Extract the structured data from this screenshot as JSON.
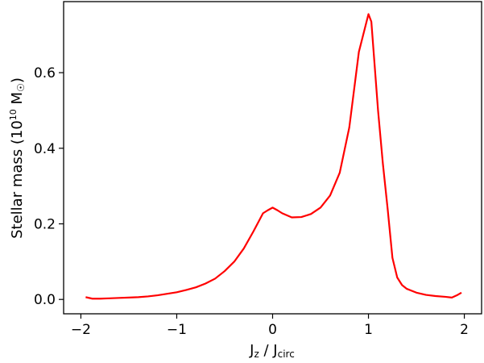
{
  "chart_data": {
    "type": "line",
    "xlabel": {
      "main": "J",
      "sub1": "z",
      "mid": " / J",
      "sub2": "circ"
    },
    "ylabel": {
      "pre": "Stellar mass (10",
      "sup": "10",
      "post": " M",
      "post_sym": "☉",
      "close": ")"
    },
    "xlim": [
      -2.18,
      2.18
    ],
    "ylim": [
      -0.038,
      0.788
    ],
    "xticks": [
      -2,
      -1,
      0,
      1,
      2
    ],
    "xtick_labels": [
      "−2",
      "−1",
      "0",
      "1",
      "2"
    ],
    "yticks": [
      0.0,
      0.2,
      0.4,
      0.6
    ],
    "ytick_labels": [
      "0.0",
      "0.2",
      "0.4",
      "0.6"
    ],
    "grid": false,
    "legend": "none",
    "series": [
      {
        "color": "#ff0000",
        "x": [
          -1.95,
          -1.88,
          -1.8,
          -1.7,
          -1.6,
          -1.5,
          -1.4,
          -1.3,
          -1.2,
          -1.1,
          -1.0,
          -0.9,
          -0.8,
          -0.7,
          -0.6,
          -0.5,
          -0.4,
          -0.3,
          -0.2,
          -0.1,
          -0.05,
          0.0,
          0.05,
          0.1,
          0.2,
          0.3,
          0.4,
          0.5,
          0.6,
          0.7,
          0.8,
          0.9,
          1.0,
          1.03,
          1.1,
          1.15,
          1.2,
          1.25,
          1.3,
          1.35,
          1.4,
          1.5,
          1.6,
          1.7,
          1.8,
          1.87,
          1.93,
          1.97
        ],
        "y": [
          0.006,
          0.002,
          0.002,
          0.003,
          0.004,
          0.005,
          0.006,
          0.008,
          0.011,
          0.015,
          0.019,
          0.025,
          0.032,
          0.042,
          0.055,
          0.075,
          0.1,
          0.135,
          0.18,
          0.228,
          0.236,
          0.243,
          0.236,
          0.228,
          0.217,
          0.218,
          0.226,
          0.243,
          0.275,
          0.335,
          0.455,
          0.655,
          0.755,
          0.735,
          0.5,
          0.36,
          0.24,
          0.11,
          0.058,
          0.038,
          0.028,
          0.018,
          0.012,
          0.009,
          0.007,
          0.005,
          0.012,
          0.018
        ]
      }
    ]
  }
}
